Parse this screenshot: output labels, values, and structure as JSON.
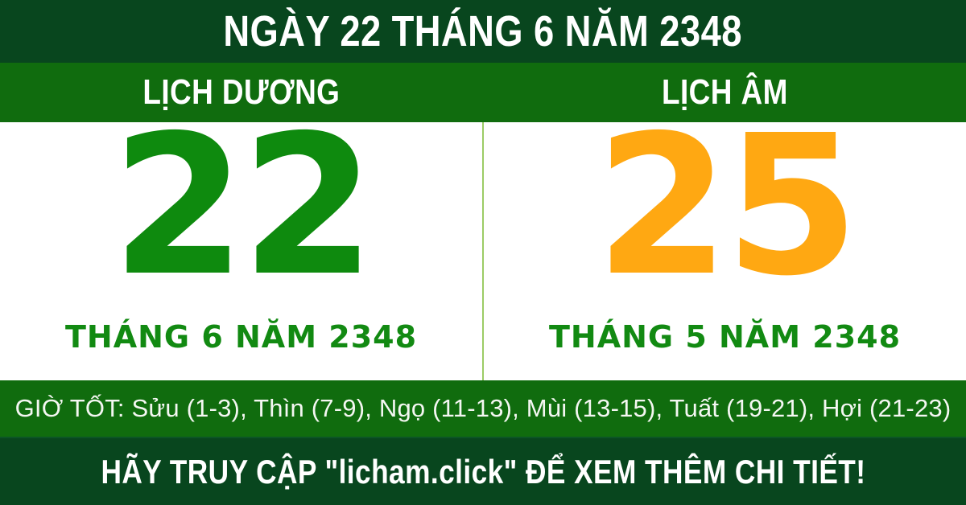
{
  "colors": {
    "dark_green": "#08461e",
    "bar_green": "#106c0e",
    "day_green": "#0e8a0e",
    "month_green": "#128a12",
    "lunar_orange": "#ffa812",
    "divider_green": "#9ccc65",
    "text_white": "#ffffff"
  },
  "header": {
    "title": "NGÀY 22 THÁNG 6 NĂM 2348"
  },
  "calendar": {
    "solar": {
      "label": "LỊCH DƯƠNG",
      "day": "22",
      "month_year": "THÁNG 6 NĂM 2348"
    },
    "lunar": {
      "label": "LỊCH ÂM",
      "day": "25",
      "month_year": "THÁNG 5 NĂM 2348"
    }
  },
  "good_hours": {
    "text": "GIỜ TỐT: Sửu (1-3), Thìn (7-9), Ngọ (11-13), Mùi (13-15), Tuất (19-21), Hợi (21-23)"
  },
  "footer": {
    "text": "HÃY TRUY CẬP \"licham.click\" ĐỂ XEM THÊM CHI TIẾT!"
  }
}
